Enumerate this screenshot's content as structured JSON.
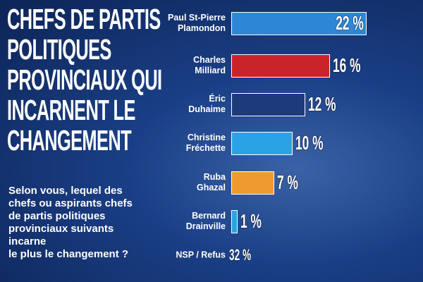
{
  "chart_data": {
    "type": "bar",
    "orientation": "horizontal",
    "title": "CHEFS DE PARTIS\nPOLITIQUES\nPROVINCIAUX QUI\nINCARNENT LE\nCHANGEMENT",
    "subtitle": "Selon vous, lequel des\nchefs ou aspirants chefs\nde partis politiques\nprovinciaux suivants\nincarne\nle plus le changement ?",
    "categories": [
      "Paul St-Pierre\nPlamondon",
      "Charles\nMilliard",
      "Éric\nDuhaime",
      "Christine\nFréchette",
      "Ruba\nGhazal",
      "Bernard\nDrainville"
    ],
    "values": [
      22,
      16,
      12,
      10,
      7,
      1
    ],
    "value_labels": [
      "22 %",
      "16 %",
      "12 %",
      "10 %",
      "7 %",
      "1 %"
    ],
    "colors": [
      "#2e86d6",
      "#c8242a",
      "#1d3a7a",
      "#29a3e6",
      "#ef9a2e",
      "#29a3e6"
    ],
    "other": {
      "label": "NSP / Refus",
      "value": 32,
      "value_label": "32 %"
    }
  }
}
